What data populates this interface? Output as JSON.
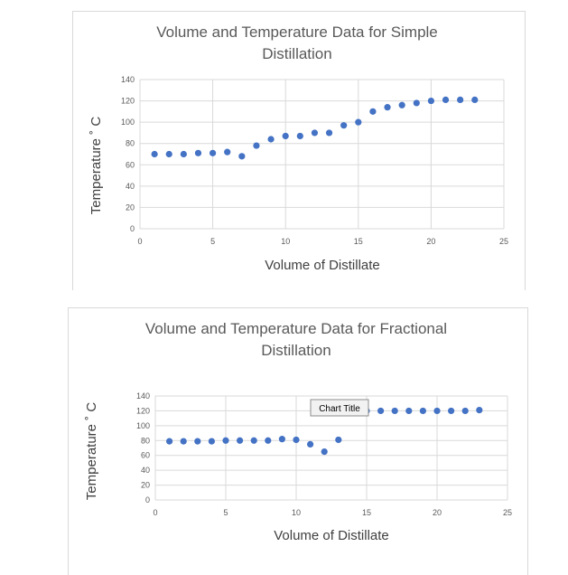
{
  "chart_data": [
    {
      "type": "scatter",
      "title_line1": "Volume and Temperature Data for Simple",
      "title_line2": "Distillation",
      "xlabel": "Volume of Distillate",
      "ylabel": "Temperature ˚ C",
      "xlim": [
        0,
        25
      ],
      "ylim": [
        0,
        140
      ],
      "xticks": [
        0,
        5,
        10,
        15,
        20,
        25
      ],
      "yticks": [
        0,
        20,
        40,
        60,
        80,
        100,
        120,
        140
      ],
      "grid": true,
      "color": "#4472c4",
      "x": [
        1,
        2,
        3,
        4,
        5,
        6,
        7,
        8,
        9,
        10,
        11,
        12,
        13,
        14,
        15,
        16,
        17,
        18,
        19,
        20,
        21,
        22,
        23
      ],
      "y": [
        70,
        70,
        70,
        71,
        71,
        72,
        68,
        78,
        84,
        87,
        87,
        90,
        90,
        97,
        100,
        110,
        114,
        116,
        118,
        120,
        121,
        121,
        121
      ]
    },
    {
      "type": "scatter",
      "title_line1": "Volume and Temperature Data for Fractional",
      "title_line2": "Distillation",
      "xlabel": "Volume of Distillate",
      "ylabel": "Temperature ˚ C",
      "xlim": [
        0,
        25
      ],
      "ylim": [
        0,
        140
      ],
      "xticks": [
        0,
        5,
        10,
        15,
        20,
        25
      ],
      "yticks": [
        0,
        20,
        40,
        60,
        80,
        100,
        120,
        140
      ],
      "grid": true,
      "color": "#4472c4",
      "tooltip": "Chart Title",
      "x": [
        1,
        2,
        3,
        4,
        5,
        6,
        7,
        8,
        9,
        10,
        11,
        12,
        13,
        14,
        15,
        16,
        17,
        18,
        19,
        20,
        21,
        22,
        23
      ],
      "y": [
        79,
        79,
        79,
        79,
        80,
        80,
        80,
        80,
        82,
        81,
        75,
        65,
        81,
        120,
        120,
        120,
        120,
        120,
        120,
        120,
        120,
        120,
        121
      ]
    }
  ]
}
